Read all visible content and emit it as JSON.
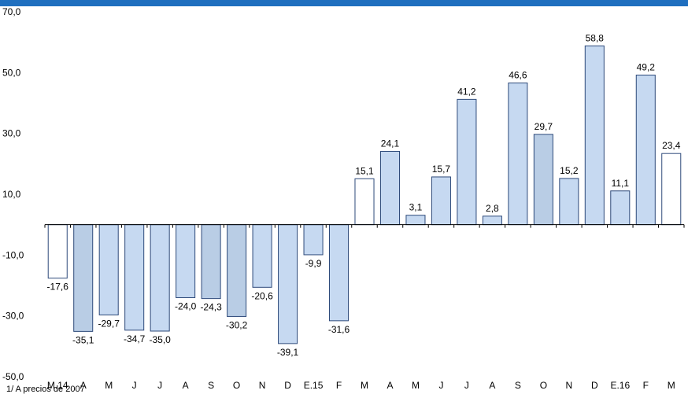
{
  "chart_data": {
    "type": "bar",
    "title": "",
    "xlabel": "",
    "ylabel": "",
    "ylim": [
      -50,
      70
    ],
    "yticks": [
      70,
      50,
      30,
      10,
      -10,
      -30,
      -50
    ],
    "ytick_labels": [
      "70,0",
      "50,0",
      "30,0",
      "10,0",
      "-10,0",
      "-30,0",
      "-50,0"
    ],
    "grid": false,
    "categories": [
      "M.14",
      "A",
      "M",
      "J",
      "J",
      "A",
      "S",
      "O",
      "N",
      "D",
      "E.15",
      "F",
      "M",
      "A",
      "M",
      "J",
      "J",
      "A",
      "S",
      "O",
      "N",
      "D",
      "E.16",
      "F",
      "M"
    ],
    "values": [
      -17.6,
      -35.1,
      -29.7,
      -34.7,
      -35.0,
      -24.0,
      -24.3,
      -30.2,
      -20.6,
      -39.1,
      -9.9,
      -31.6,
      15.1,
      24.1,
      3.1,
      15.7,
      41.2,
      2.8,
      46.6,
      29.7,
      15.2,
      58.8,
      11.1,
      49.2,
      23.4
    ],
    "value_labels": [
      "-17,6",
      "-35,1",
      "-29,7",
      "-34,7",
      "-35,0",
      "-24,0",
      "-24,3",
      "-30,2",
      "-20,6",
      "-39,1",
      "-9,9",
      "-31,6",
      "15,1",
      "24,1",
      "3,1",
      "15,7",
      "41,2",
      "2,8",
      "46,6",
      "29,7",
      "15,2",
      "58,8",
      "11,1",
      "49,2",
      "23,4"
    ],
    "bar_styles": [
      "white",
      "dark",
      "light",
      "light",
      "light",
      "light",
      "dark",
      "dark",
      "light",
      "light",
      "light",
      "light",
      "white",
      "light",
      "light",
      "light",
      "light",
      "light",
      "light",
      "dark",
      "light",
      "light",
      "light",
      "light",
      "white"
    ],
    "colors": {
      "white": "#ffffff",
      "light": "#c6d9f1",
      "dark": "#b9cde5",
      "stroke": "#2e4a7a",
      "axis": "#000000"
    }
  },
  "footnote": "1/ A precios de 2007"
}
